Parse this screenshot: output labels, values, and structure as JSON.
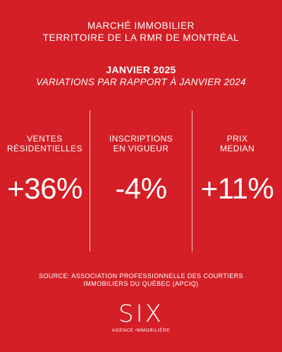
{
  "header": {
    "line1": "MARCHÉ IMMOBILIER",
    "line2": "TERRITOIRE DE LA RMR DE MONTRÉAL"
  },
  "period": {
    "month": "JANVIER 2025",
    "comparison": "VARIATIONS PAR RAPPORT À JANVIER 2024"
  },
  "stats": [
    {
      "label_line1": "VENTES",
      "label_line2": "RÉSIDENTIELLES",
      "value": "+36%"
    },
    {
      "label_line1": "INSCRIPTIONS",
      "label_line2": "EN VIGUEUR",
      "value": "-4%"
    },
    {
      "label_line1": "PRIX",
      "label_line2": "MEDIAN",
      "value": "+11%"
    }
  ],
  "source": {
    "line1": "SOURCE: ASSOCIATION PROFESSIONNELLE DES COURTIERS",
    "line2": "IMMOBILIERS DU QUÉBEC (APCIQ)"
  },
  "logo": {
    "wordmark": "SIX",
    "tagline": "AGENCE IMMOBILIÈRE"
  },
  "colors": {
    "background": "#d41f26",
    "text": "#ffffff"
  }
}
